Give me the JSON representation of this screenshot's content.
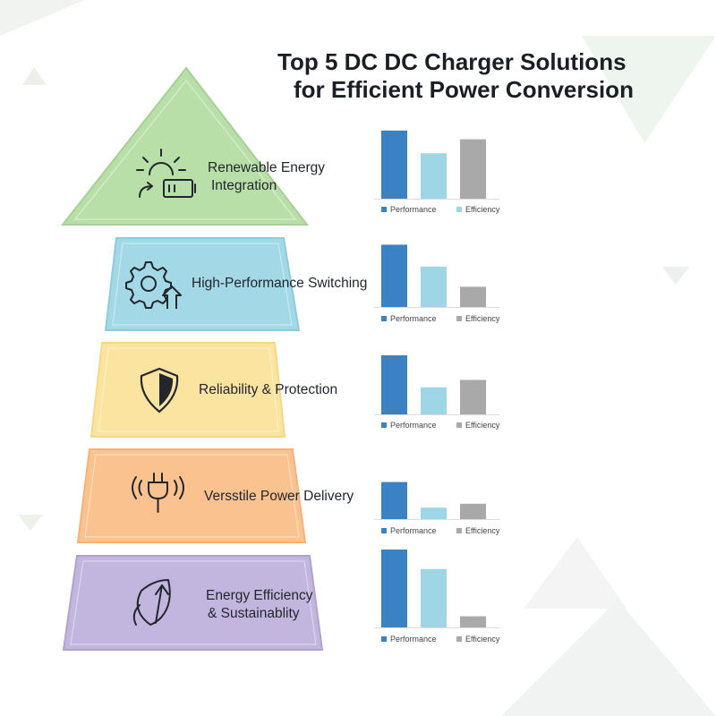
{
  "title": {
    "line1": "Top 5 DC DC Charger Solutions",
    "line2": "for Efficient Power Conversion"
  },
  "colors": {
    "performance": "#3b82c4",
    "efficiency": "#9fd6e6",
    "third": "#a9a9a9",
    "tier1": "#b9dfa9",
    "tier2": "#a3d8e6",
    "tier3": "#fbe3a0",
    "tier4": "#f9c28e",
    "tier5": "#c2b5de"
  },
  "tiers": [
    {
      "lines": [
        "Renewable Energy",
        "Integration"
      ],
      "icon": "solar-battery-icon"
    },
    {
      "lines": [
        "High-Performance Switching"
      ],
      "icon": "gear-arrow-icon"
    },
    {
      "lines": [
        "Reliability & Protection"
      ],
      "icon": "shield-icon"
    },
    {
      "lines": [
        "Versstile Power Delivery"
      ],
      "icon": "plug-icon"
    },
    {
      "lines": [
        "Energy Efficiency",
        "& Sustainablity"
      ],
      "icon": "leaf-icon"
    }
  ],
  "legend": {
    "performance": "Performance",
    "efficiency": "Efficiency"
  },
  "chart_data": [
    {
      "type": "bar",
      "title": "",
      "categories": [
        "Performance",
        "Efficiency",
        ""
      ],
      "values": [
        78,
        52,
        68
      ],
      "ylim": [
        0,
        100
      ],
      "grid": false,
      "legend": "bottom"
    },
    {
      "type": "bar",
      "title": "",
      "categories": [
        "Performance",
        "Efficiency",
        ""
      ],
      "values": [
        74,
        48,
        24
      ],
      "ylim": [
        0,
        100
      ],
      "grid": false,
      "legend": "bottom"
    },
    {
      "type": "bar",
      "title": "",
      "categories": [
        "Performance",
        "Efficiency",
        ""
      ],
      "values": [
        72,
        33,
        42
      ],
      "ylim": [
        0,
        100
      ],
      "grid": false,
      "legend": "bottom"
    },
    {
      "type": "bar",
      "title": "",
      "categories": [
        "Performance",
        "Efficiency",
        ""
      ],
      "values": [
        58,
        18,
        24
      ],
      "ylim": [
        0,
        100
      ],
      "grid": false,
      "legend": "bottom"
    },
    {
      "type": "bar",
      "title": "",
      "categories": [
        "Performance",
        "Efficiency",
        ""
      ],
      "values": [
        84,
        63,
        12
      ],
      "ylim": [
        0,
        100
      ],
      "grid": false,
      "legend": "bottom"
    }
  ]
}
